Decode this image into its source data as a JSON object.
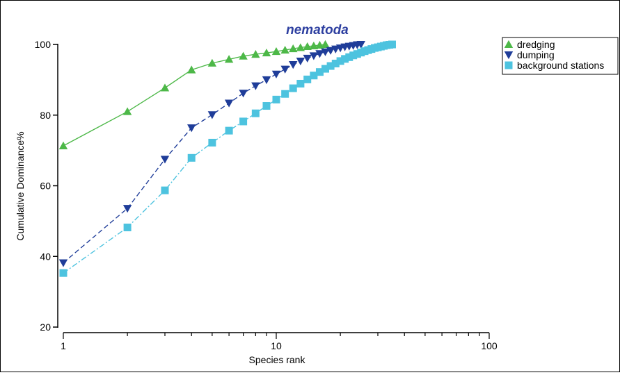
{
  "chart_data": {
    "type": "line",
    "title": "nematoda",
    "xlabel": "Species rank",
    "ylabel": "Cumulative Dominance%",
    "x_scale": "log",
    "xlim": [
      1,
      100
    ],
    "ylim": [
      20,
      100
    ],
    "x_ticks": [
      1,
      10,
      100
    ],
    "y_ticks": [
      20,
      40,
      60,
      80,
      100
    ],
    "grid": false,
    "legend_position": "top-right",
    "colors": {
      "title": "#2d3fa0",
      "axis": "#000000"
    },
    "series": [
      {
        "name": "dredging",
        "marker": "triangle-up",
        "line_style": "solid",
        "color": "#4db848",
        "x": [
          1,
          2,
          3,
          4,
          5,
          6,
          7,
          8,
          9,
          10,
          11,
          12,
          13,
          14,
          15,
          16,
          17
        ],
        "y": [
          71.3,
          81.0,
          87.7,
          92.8,
          94.7,
          95.8,
          96.7,
          97.2,
          97.6,
          98.0,
          98.4,
          98.8,
          99.1,
          99.4,
          99.6,
          99.8,
          100.0
        ]
      },
      {
        "name": "dumping",
        "marker": "triangle-down",
        "line_style": "dashed",
        "color": "#1f3d99",
        "x": [
          1,
          2,
          3,
          4,
          5,
          6,
          7,
          8,
          9,
          10,
          11,
          12,
          13,
          14,
          15,
          16,
          17,
          18,
          19,
          20,
          21,
          22,
          23,
          24,
          25
        ],
        "y": [
          38.2,
          53.6,
          67.5,
          76.4,
          80.1,
          83.4,
          86.2,
          88.3,
          90.0,
          91.6,
          93.0,
          94.3,
          95.3,
          96.1,
          96.8,
          97.4,
          97.9,
          98.3,
          98.7,
          99.0,
          99.3,
          99.5,
          99.7,
          99.9,
          100.0
        ]
      },
      {
        "name": "background stations",
        "marker": "square",
        "line_style": "dash-dot",
        "color": "#4dc3df",
        "x": [
          1,
          2,
          3,
          4,
          5,
          6,
          7,
          8,
          9,
          10,
          11,
          12,
          13,
          14,
          15,
          16,
          17,
          18,
          19,
          20,
          21,
          22,
          23,
          24,
          25,
          26,
          27,
          28,
          29,
          30,
          31,
          32,
          33,
          34,
          35
        ],
        "y": [
          35.3,
          48.2,
          58.7,
          67.9,
          72.2,
          75.6,
          78.2,
          80.5,
          82.6,
          84.4,
          86.0,
          87.6,
          88.9,
          90.1,
          91.2,
          92.2,
          93.1,
          93.9,
          94.6,
          95.3,
          95.9,
          96.4,
          96.9,
          97.3,
          97.7,
          98.1,
          98.4,
          98.7,
          99.0,
          99.2,
          99.4,
          99.6,
          99.8,
          99.9,
          100.0
        ]
      }
    ]
  }
}
